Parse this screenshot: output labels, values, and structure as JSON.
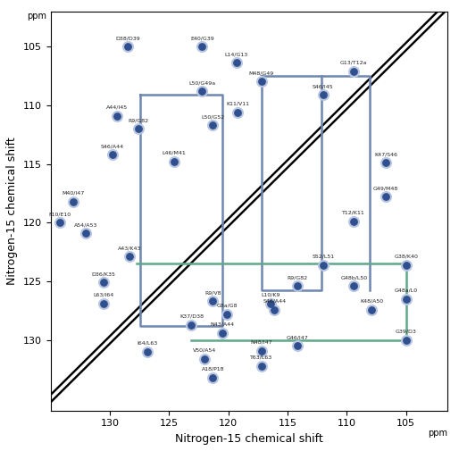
{
  "chart_data": {
    "type": "scatter",
    "x_label": "Nitrogen-15 chemical shift",
    "y_label": "Nitrogen-15 chemical shift",
    "unit_label": "ppm",
    "xlim": [
      135,
      101.5
    ],
    "ylim": [
      136,
      102
    ],
    "xticks": [
      130,
      125,
      120,
      115,
      110,
      105
    ],
    "yticks": [
      105,
      110,
      115,
      120,
      125,
      130
    ],
    "grid": false,
    "color": "#2f4f8f",
    "marker": "o",
    "peaks": [
      {
        "label": "D38/D39",
        "x": 128.5,
        "y": 105.0
      },
      {
        "label": "E40/G39",
        "x": 122.2,
        "y": 105.0
      },
      {
        "label": "L14/G13",
        "x": 119.3,
        "y": 106.4
      },
      {
        "label": "G13/T12a",
        "x": 109.4,
        "y": 107.1
      },
      {
        "label": "M48/G49",
        "x": 117.2,
        "y": 108.0
      },
      {
        "label": "S46/I45",
        "x": 112.0,
        "y": 109.1
      },
      {
        "label": "L50/G49a",
        "x": 122.2,
        "y": 108.8
      },
      {
        "label": "K11/V11",
        "x": 119.2,
        "y": 110.6
      },
      {
        "label": "A44/I45",
        "x": 129.4,
        "y": 110.9
      },
      {
        "label": "R9/G82",
        "x": 127.6,
        "y": 112.0
      },
      {
        "label": "L50/G52",
        "x": 121.3,
        "y": 111.7
      },
      {
        "label": "S46/A44",
        "x": 129.8,
        "y": 114.2
      },
      {
        "label": "L46/M41",
        "x": 124.6,
        "y": 114.8
      },
      {
        "label": "K47/S46",
        "x": 106.7,
        "y": 114.9
      },
      {
        "label": "M40/I47",
        "x": 133.1,
        "y": 118.2
      },
      {
        "label": "G49/M48",
        "x": 106.7,
        "y": 117.8
      },
      {
        "label": "T12/K11",
        "x": 109.4,
        "y": 119.9
      },
      {
        "label": "F10/E10",
        "x": 134.2,
        "y": 120.0
      },
      {
        "label": "A54/A53",
        "x": 132.0,
        "y": 120.9
      },
      {
        "label": "A43/K43",
        "x": 128.3,
        "y": 122.9
      },
      {
        "label": "S52/L51",
        "x": 112.0,
        "y": 123.6
      },
      {
        "label": "G38/K40",
        "x": 105.0,
        "y": 123.6
      },
      {
        "label": "D36/K35",
        "x": 130.5,
        "y": 125.1
      },
      {
        "label": "L63/I64",
        "x": 130.5,
        "y": 126.9
      },
      {
        "label": "R9/V8",
        "x": 121.3,
        "y": 126.7
      },
      {
        "label": "L10/K9",
        "x": 116.4,
        "y": 126.9
      },
      {
        "label": "G48b/L50",
        "x": 109.4,
        "y": 125.4
      },
      {
        "label": "G48a/L0",
        "x": 105.0,
        "y": 126.5
      },
      {
        "label": "R9/G82",
        "x": 114.2,
        "y": 125.4
      },
      {
        "label": "G8a/G8",
        "x": 120.1,
        "y": 127.8
      },
      {
        "label": "S46/A44",
        "x": 116.1,
        "y": 127.4
      },
      {
        "label": "K48/A50",
        "x": 107.9,
        "y": 127.4
      },
      {
        "label": "G39/D3",
        "x": 105.0,
        "y": 130.0
      },
      {
        "label": "K37/D38",
        "x": 123.1,
        "y": 128.7
      },
      {
        "label": "N43/A44",
        "x": 120.5,
        "y": 129.4
      },
      {
        "label": "I64/L63",
        "x": 126.8,
        "y": 131.0
      },
      {
        "label": "V50/A54",
        "x": 122.0,
        "y": 131.6
      },
      {
        "label": "N48/I47",
        "x": 117.2,
        "y": 130.9
      },
      {
        "label": "G46/I47",
        "x": 114.2,
        "y": 130.5
      },
      {
        "label": "T63/L63",
        "x": 117.2,
        "y": 132.2
      },
      {
        "label": "A18/P18",
        "x": 121.3,
        "y": 133.2
      }
    ],
    "connections": [
      {
        "color": "#6f86b0",
        "x": [
          127.4,
          120.5,
          120.5,
          127.4,
          127.4
        ],
        "y": [
          109.1,
          109.1,
          128.8,
          128.8,
          109.1
        ]
      },
      {
        "color": "#6f86b0",
        "x": [
          117.2,
          108.1,
          108.1
        ],
        "y": [
          107.5,
          107.5,
          125.8
        ]
      },
      {
        "color": "#6f86b0",
        "x": [
          117.2,
          117.2,
          112.1,
          112.1
        ],
        "y": [
          107.5,
          125.8,
          125.8,
          107.5
        ]
      },
      {
        "color": "#5fa88a",
        "x": [
          127.7,
          105.0,
          105.0,
          123.1
        ],
        "y": [
          123.5,
          123.5,
          130.0,
          130.0
        ]
      }
    ]
  }
}
